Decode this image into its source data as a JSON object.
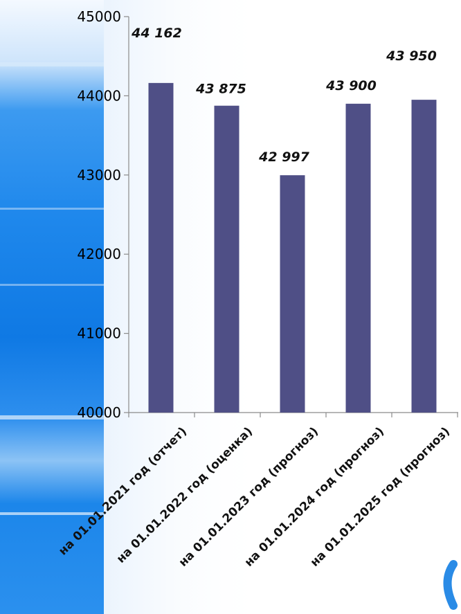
{
  "chart_data": {
    "type": "bar",
    "title": "",
    "xlabel": "",
    "ylabel": "",
    "categories": [
      "на 01.01.2021 год (отчет)",
      "на 01.01.2022 год (оценка)",
      "на 01.01.2023 год (прогноз)",
      "на 01.01.2024 год  (прогноз)",
      "на 01.01.2025 год (прогноз)"
    ],
    "values": [
      44162,
      43875,
      42997,
      43900,
      43950
    ],
    "data_labels": [
      "44 162",
      "43 875",
      "42 997",
      "43 900",
      "43 950"
    ],
    "ylim": [
      40000,
      45000
    ],
    "yticks": [
      "40000",
      "41000",
      "42000",
      "43000",
      "44000",
      "45000"
    ],
    "grid": false,
    "legend": "none",
    "bar_color": "#4f4f86"
  }
}
